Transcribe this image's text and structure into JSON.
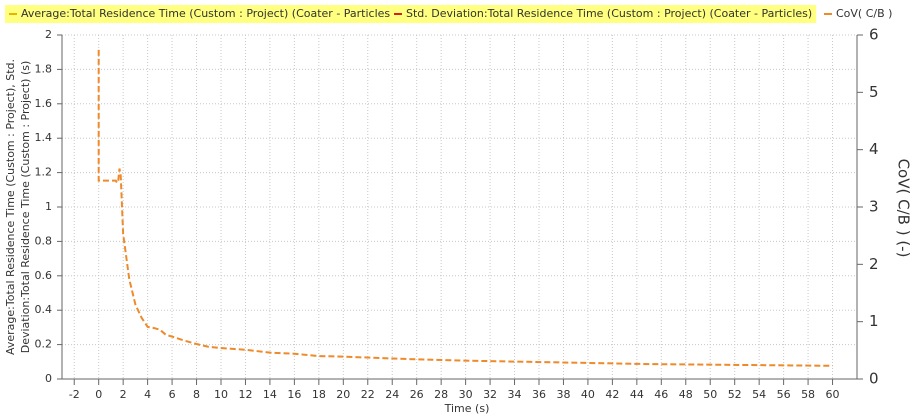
{
  "chart_data": {
    "type": "line",
    "series": [
      {
        "name": "Average:Total Residence Time (Custom : Project) (Coater - Particles)",
        "color": "#e8b400",
        "highlight": "#ffff80",
        "x": [],
        "values": []
      },
      {
        "name": "Std. Deviation:Total Residence Time (Custom : Project) (Coater - Particles)",
        "color": "#d62020",
        "highlight": "#ffff80",
        "x": [],
        "values": []
      },
      {
        "name": "CoV( C/B )",
        "color": "#ee8a2a",
        "axis": "y2",
        "x": [
          0,
          0,
          1.4,
          1.5,
          1.6,
          1.7,
          1.8,
          2,
          2.5,
          3,
          3.5,
          4,
          4.5,
          5,
          5.5,
          6,
          7,
          8,
          9,
          10,
          12,
          14,
          16,
          18,
          20,
          25,
          30,
          35,
          40,
          45,
          50,
          55,
          60
        ],
        "values": [
          5.74,
          3.46,
          3.46,
          3.42,
          3.46,
          3.67,
          3.55,
          2.53,
          1.74,
          1.3,
          1.07,
          0.91,
          0.89,
          0.86,
          0.77,
          0.74,
          0.67,
          0.61,
          0.56,
          0.54,
          0.51,
          0.46,
          0.44,
          0.4,
          0.39,
          0.35,
          0.32,
          0.3,
          0.28,
          0.26,
          0.25,
          0.24,
          0.23
        ]
      }
    ],
    "xlabel": "Time (s)",
    "ylabel": [
      "Average:Total Residence Time (Custom : Project), Std.",
      "Deviation:Total Residence Time (Custom : Project) (s)"
    ],
    "y2label": "CoV( C/B ) (-)",
    "xlim": [
      -3,
      62
    ],
    "xticks": [
      -2,
      0,
      2,
      4,
      6,
      8,
      10,
      12,
      14,
      16,
      18,
      20,
      22,
      24,
      26,
      28,
      30,
      32,
      34,
      36,
      38,
      40,
      42,
      44,
      46,
      48,
      50,
      52,
      54,
      56,
      58,
      60
    ],
    "ylim": [
      0,
      2
    ],
    "yticks": [
      0,
      0.2,
      0.4,
      0.6,
      0.8,
      1,
      1.2,
      1.4,
      1.6,
      1.8,
      2
    ],
    "y2lim": [
      0,
      6
    ],
    "y2ticks": [
      0,
      1,
      2,
      3,
      4,
      5,
      6
    ],
    "grid": true
  }
}
